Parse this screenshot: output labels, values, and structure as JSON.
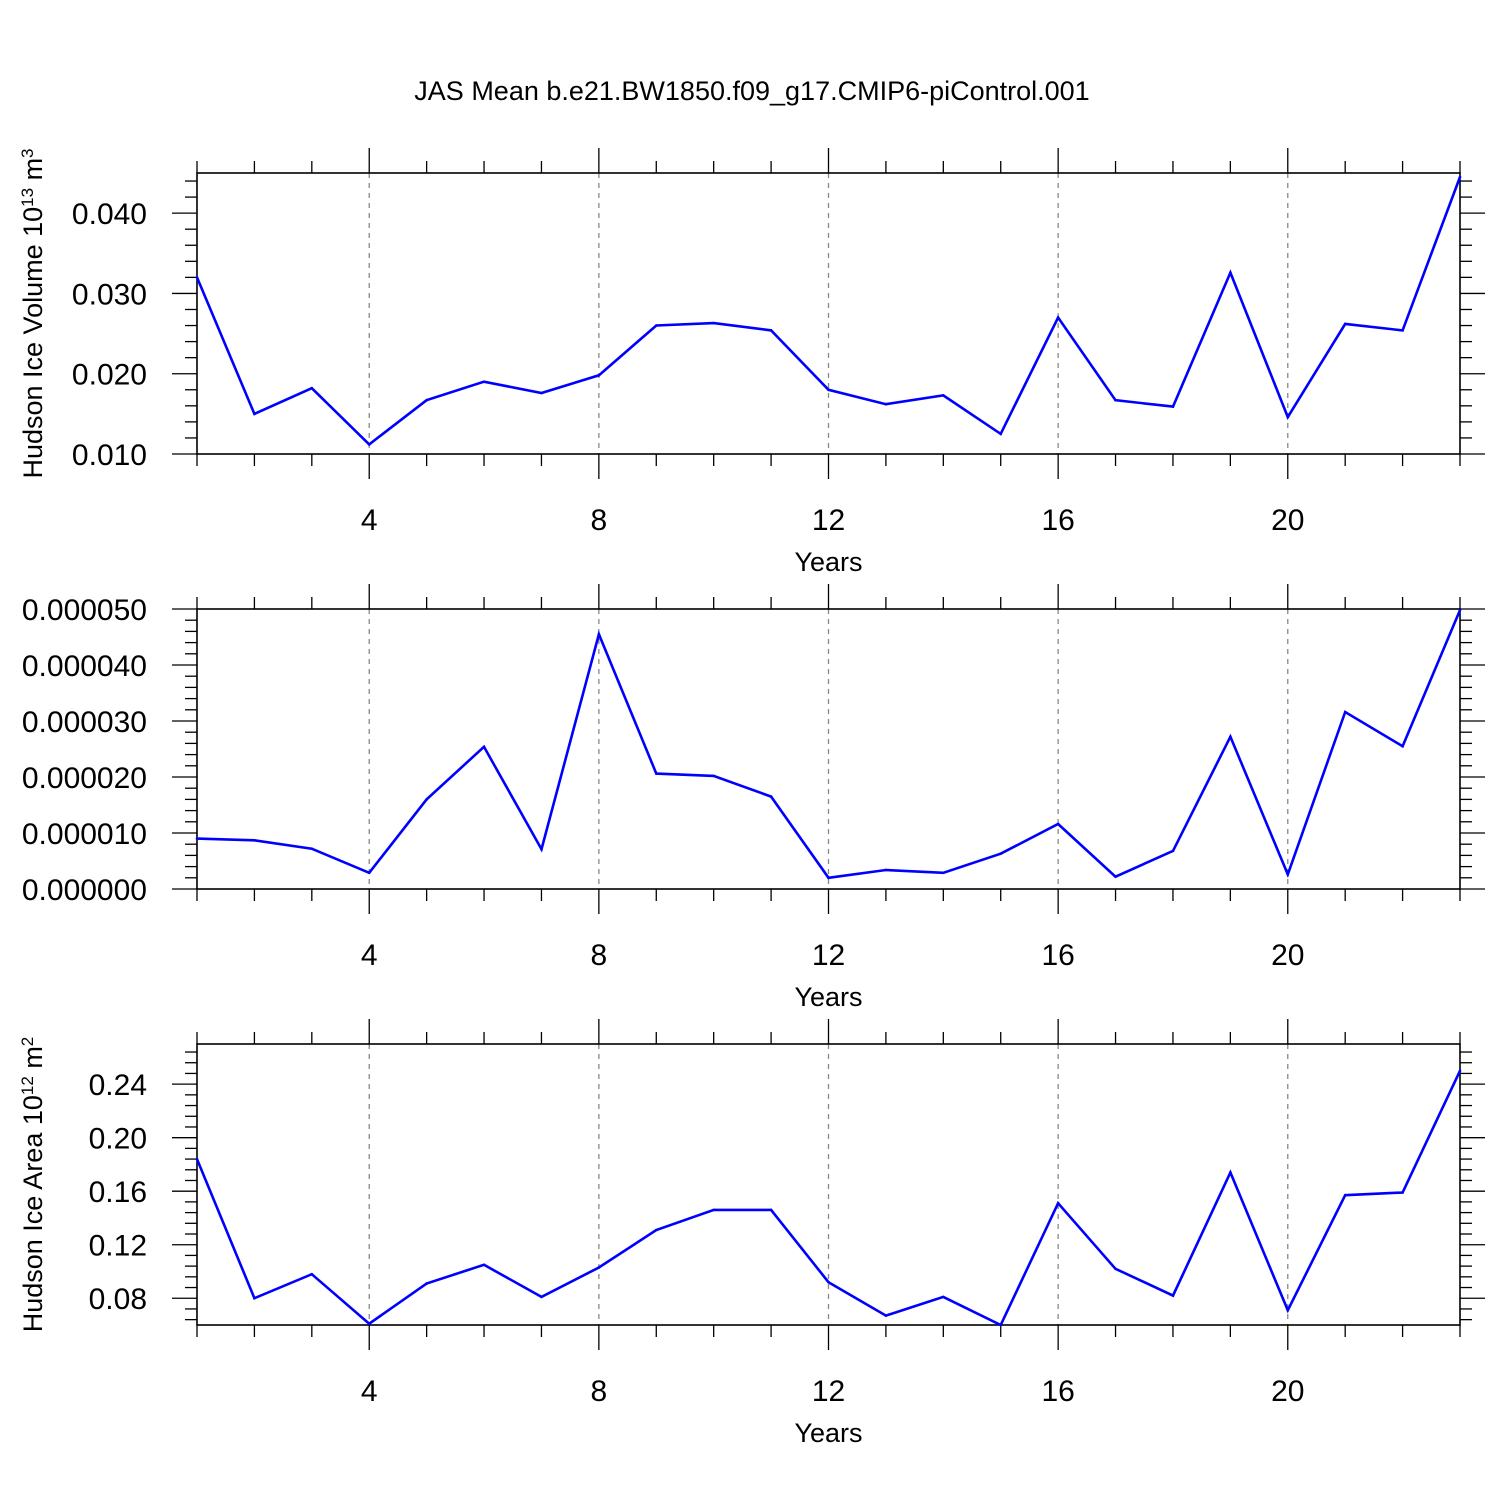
{
  "title": "JAS Mean b.e21.BW1850.f09_g17.CMIP6-piControl.001",
  "chart_data": [
    {
      "type": "line",
      "title": "JAS Mean b.e21.BW1850.f09_g17.CMIP6-piControl.001",
      "xlabel": "Years",
      "ylabel": {
        "main": "Hudson Ice Volume 10",
        "sup": "13",
        "unit": " m",
        "unit_sup": "3"
      },
      "xlim": [
        1,
        23
      ],
      "ylim": [
        0.01,
        0.045
      ],
      "xticks": [
        4,
        8,
        12,
        16,
        20
      ],
      "xtick_labels": [
        "4",
        "8",
        "12",
        "16",
        "20"
      ],
      "yticks": [
        0.01,
        0.02,
        0.03,
        0.04
      ],
      "ytick_labels": [
        "0.010",
        "0.020",
        "0.030",
        "0.040"
      ],
      "grid": "dashed vertical at major x ticks",
      "line_color": "#0000ff",
      "x": [
        1,
        2,
        3,
        4,
        5,
        6,
        7,
        8,
        9,
        10,
        11,
        12,
        13,
        14,
        15,
        16,
        17,
        18,
        19,
        20,
        21,
        22,
        23
      ],
      "values": [
        0.032,
        0.015,
        0.0182,
        0.0112,
        0.0167,
        0.019,
        0.0176,
        0.0198,
        0.026,
        0.0263,
        0.0254,
        0.018,
        0.0162,
        0.0173,
        0.0125,
        0.027,
        0.0167,
        0.0159,
        0.0326,
        0.0146,
        0.0262,
        0.0254,
        0.0445
      ]
    },
    {
      "type": "line",
      "xlabel": "Years",
      "ylabel": null,
      "xlim": [
        1,
        23
      ],
      "ylim": [
        0.0,
        5e-05
      ],
      "xticks": [
        4,
        8,
        12,
        16,
        20
      ],
      "xtick_labels": [
        "4",
        "8",
        "12",
        "16",
        "20"
      ],
      "yticks": [
        0.0,
        1e-05,
        2e-05,
        3e-05,
        4e-05,
        5e-05
      ],
      "ytick_labels": [
        "0.000000",
        "0.000010",
        "0.000020",
        "0.000030",
        "0.000040",
        "0.000050"
      ],
      "grid": "dashed vertical at major x ticks",
      "line_color": "#0000ff",
      "x": [
        1,
        2,
        3,
        4,
        5,
        6,
        7,
        8,
        9,
        10,
        11,
        12,
        13,
        14,
        15,
        16,
        17,
        18,
        19,
        20,
        21,
        22,
        23
      ],
      "values": [
        9e-06,
        8.7e-06,
        7.2e-06,
        2.9e-06,
        1.6e-05,
        2.54e-05,
        7.1e-06,
        4.55e-05,
        2.06e-05,
        2.02e-05,
        1.65e-05,
        2e-06,
        3.4e-06,
        2.9e-06,
        6.3e-06,
        1.16e-05,
        2.2e-06,
        6.8e-06,
        2.72e-05,
        2.6e-06,
        3.16e-05,
        2.55e-05,
        4.98e-05
      ]
    },
    {
      "type": "line",
      "xlabel": "Years",
      "ylabel": {
        "main": "Hudson Ice Area 10",
        "sup": "12",
        "unit": " m",
        "unit_sup": "2"
      },
      "xlim": [
        1,
        23
      ],
      "ylim": [
        0.06,
        0.27
      ],
      "xticks": [
        4,
        8,
        12,
        16,
        20
      ],
      "xtick_labels": [
        "4",
        "8",
        "12",
        "16",
        "20"
      ],
      "yticks": [
        0.08,
        0.12,
        0.16,
        0.2,
        0.24
      ],
      "ytick_labels": [
        "0.08",
        "0.12",
        "0.16",
        "0.20",
        "0.24"
      ],
      "grid": "dashed vertical at major x ticks",
      "line_color": "#0000ff",
      "x": [
        1,
        2,
        3,
        4,
        5,
        6,
        7,
        8,
        9,
        10,
        11,
        12,
        13,
        14,
        15,
        16,
        17,
        18,
        19,
        20,
        21,
        22,
        23
      ],
      "values": [
        0.184,
        0.08,
        0.098,
        0.061,
        0.091,
        0.105,
        0.081,
        0.103,
        0.131,
        0.146,
        0.146,
        0.092,
        0.067,
        0.081,
        0.06,
        0.151,
        0.102,
        0.082,
        0.174,
        0.071,
        0.157,
        0.159,
        0.25
      ]
    }
  ]
}
